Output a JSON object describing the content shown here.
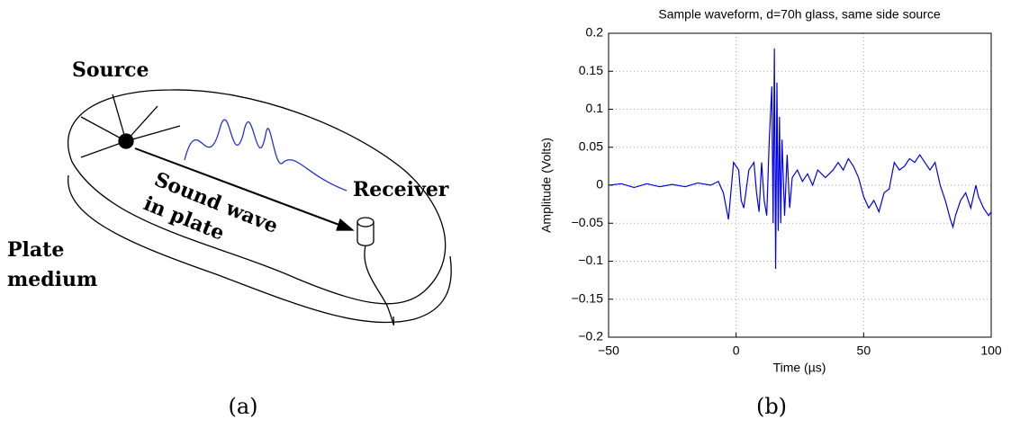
{
  "diagram": {
    "labels": {
      "source": "Source",
      "receiver": "Receiver",
      "wave_line1": "Sound wave",
      "wave_line2": "in plate",
      "plate_line1": "Plate",
      "plate_line2": "medium"
    },
    "caption": "(a)"
  },
  "chart_data": {
    "type": "line",
    "title": "Sample waveform, d=70h glass, same side source",
    "xlabel": "Time (µs)",
    "ylabel": "Amplitude (Volts)",
    "color": "#0000ee",
    "grid": true,
    "x": [
      -50,
      -45,
      -40,
      -35,
      -30,
      -25,
      -20,
      -15,
      -10,
      -7,
      -5,
      -3,
      -1,
      1,
      2,
      3,
      5,
      7,
      8,
      9,
      10,
      11,
      12,
      13,
      14,
      14.5,
      15,
      15.5,
      16,
      16.5,
      17,
      17.5,
      18,
      19,
      20,
      21,
      22,
      24,
      26,
      28,
      30,
      32,
      35,
      38,
      40,
      42,
      44,
      46,
      48,
      50,
      52,
      54,
      56,
      58,
      60,
      62,
      64,
      66,
      68,
      70,
      72,
      74,
      76,
      78,
      80,
      82,
      84,
      85,
      86,
      88,
      90,
      92,
      94,
      95,
      97,
      99,
      100
    ],
    "values": [
      0,
      0.002,
      -0.003,
      0.002,
      -0.002,
      0.001,
      -0.002,
      0.003,
      0,
      0.005,
      -0.01,
      -0.045,
      0.03,
      0.02,
      -0.02,
      -0.03,
      0.02,
      0.03,
      -0.01,
      -0.035,
      0.03,
      -0.02,
      -0.04,
      0.06,
      0.13,
      -0.05,
      0.18,
      -0.11,
      0.135,
      -0.06,
      0.09,
      -0.05,
      0.06,
      -0.04,
      0.04,
      -0.03,
      0.01,
      0.02,
      0.005,
      0.015,
      0,
      0.02,
      0.01,
      0.02,
      0.03,
      0.02,
      0.035,
      0.025,
      0.01,
      -0.015,
      -0.03,
      -0.02,
      -0.035,
      -0.01,
      -0.005,
      0.03,
      0.02,
      0.025,
      0.035,
      0.03,
      0.04,
      0.03,
      0.02,
      0.03,
      0,
      -0.02,
      -0.045,
      -0.055,
      -0.04,
      -0.02,
      -0.01,
      -0.03,
      0,
      -0.015,
      -0.03,
      -0.04,
      -0.035
    ],
    "xlim": [
      -50,
      100
    ],
    "xticks": [
      {
        "value": -50,
        "label": "−50"
      },
      0,
      50,
      100
    ],
    "ylim": [
      -0.2,
      0.2
    ],
    "yticks": [
      {
        "value": -0.2,
        "label": "−0.2"
      },
      {
        "value": -0.15,
        "label": "−0.15"
      },
      {
        "value": -0.1,
        "label": "−0.1"
      },
      {
        "value": -0.05,
        "label": "−0.05"
      },
      0,
      0.05,
      0.1,
      0.15,
      0.2
    ],
    "caption": "(b)"
  }
}
